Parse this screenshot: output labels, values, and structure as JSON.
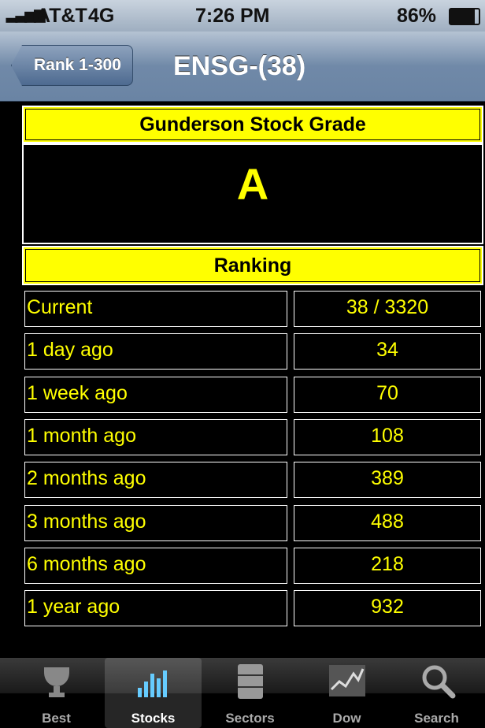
{
  "status_bar": {
    "carrier": "AT&T",
    "network": "4G",
    "time": "7:26 PM",
    "battery": "86%"
  },
  "nav": {
    "back": "Rank 1-300",
    "title": "ENSG-(38)"
  },
  "grade": {
    "header": "Gunderson Stock Grade",
    "value": "A"
  },
  "ranking": {
    "header": "Ranking",
    "rows": [
      [
        "Current",
        "38 / 3320"
      ],
      [
        "1 day ago",
        "34"
      ],
      [
        "1 week ago",
        "70"
      ],
      [
        "1 month ago",
        "108"
      ],
      [
        "2 months ago",
        "389"
      ],
      [
        "3 months ago",
        "488"
      ],
      [
        "6 months ago",
        "218"
      ],
      [
        "1 year ago",
        "932"
      ]
    ]
  },
  "tabs": [
    {
      "label": "Best"
    },
    {
      "label": "Stocks"
    },
    {
      "label": "Sectors"
    },
    {
      "label": "Dow"
    },
    {
      "label": "Search"
    }
  ]
}
